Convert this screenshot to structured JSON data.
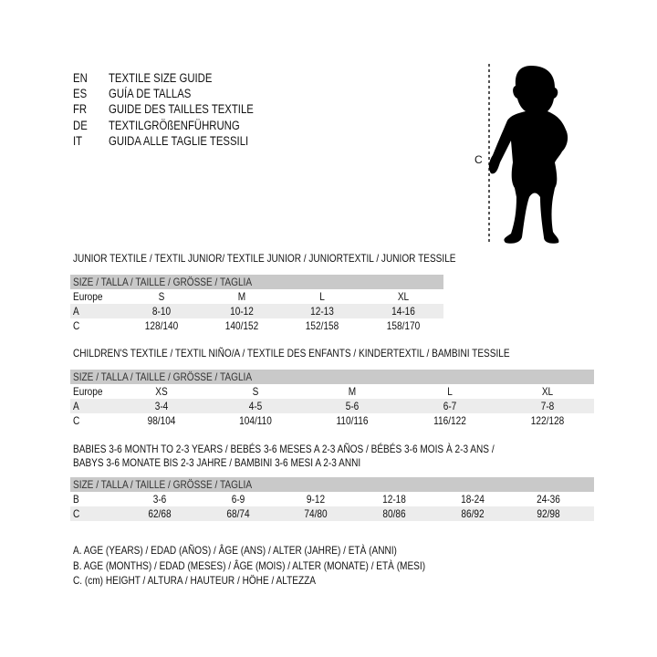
{
  "languages": [
    {
      "code": "EN",
      "text": "TEXTILE SIZE GUIDE"
    },
    {
      "code": "ES",
      "text": "GUÍA DE TALLAS"
    },
    {
      "code": "FR",
      "text": "GUIDE DES TAILLES TEXTILE"
    },
    {
      "code": "DE",
      "text": "TEXTILGRÖßENFÜHRUNG"
    },
    {
      "code": "IT",
      "text": "GUIDA ALLE TAGLIE TESSILI"
    }
  ],
  "figure": {
    "measure_label": "C"
  },
  "sections": [
    {
      "title": [
        "JUNIOR TEXTILE / TEXTIL JUNIOR/ TEXTILE JUNIOR / JUNIORTEXTIL / JUNIOR TESSILE"
      ],
      "header": "SIZE / TALLA / TAILLE / GRÖSSE / TAGLIA",
      "rows": [
        {
          "label": "Europe",
          "values": [
            "S",
            "M",
            "L",
            "XL"
          ]
        },
        {
          "label": "A",
          "values": [
            "8-10",
            "10-12",
            "12-13",
            "14-16"
          ]
        },
        {
          "label": "C",
          "values": [
            "128/140",
            "140/152",
            "152/158",
            "158/170"
          ]
        }
      ]
    },
    {
      "title": [
        "CHILDREN'S TEXTILE / TEXTIL NIÑO/A / TEXTILE DES ENFANTS / KINDERTEXTIL / BAMBINI TESSILE"
      ],
      "header": "SIZE / TALLA / TAILLE / GRÖSSE / TAGLIA",
      "rows": [
        {
          "label": "Europe",
          "values": [
            "XS",
            "S",
            "M",
            "L",
            "XL"
          ]
        },
        {
          "label": "A",
          "values": [
            "3-4",
            "4-5",
            "5-6",
            "6-7",
            "7-8"
          ]
        },
        {
          "label": "C",
          "values": [
            "98/104",
            "104/110",
            "110/116",
            "116/122",
            "122/128"
          ]
        }
      ]
    },
    {
      "title": [
        "BABIES 3-6 MONTH TO 2-3 YEARS / BEBÉS 3-6 MESES A 2-3 AÑOS / BÉBÉS 3-6 MOIS À 2-3 ANS /",
        "BABYS 3-6 MONATE BIS 2-3 JAHRE / BAMBINI 3-6 MESI A 2-3 ANNI"
      ],
      "header": "SIZE / TALLA / TAILLE / GRÖSSE / TAGLIA",
      "rows": [
        {
          "label": "B",
          "values": [
            "3-6",
            "6-9",
            "9-12",
            "12-18",
            "18-24",
            "24-36"
          ]
        },
        {
          "label": "C",
          "values": [
            "62/68",
            "68/74",
            "74/80",
            "80/86",
            "86/92",
            "92/98"
          ]
        }
      ]
    }
  ],
  "legend": [
    "A. AGE (YEARS) / EDAD (AÑOS) / ÂGE (ANS) / ALTER (JAHRE) / ETÀ (ANNI)",
    "B. AGE (MONTHS) / EDAD (MESES) / ÂGE (MOIS) / ALTER (MONATE) / ETÀ (MESI)",
    "C. (cm) HEIGHT / ALTURA / HAUTEUR / HÖHE / ALTEZZA"
  ]
}
